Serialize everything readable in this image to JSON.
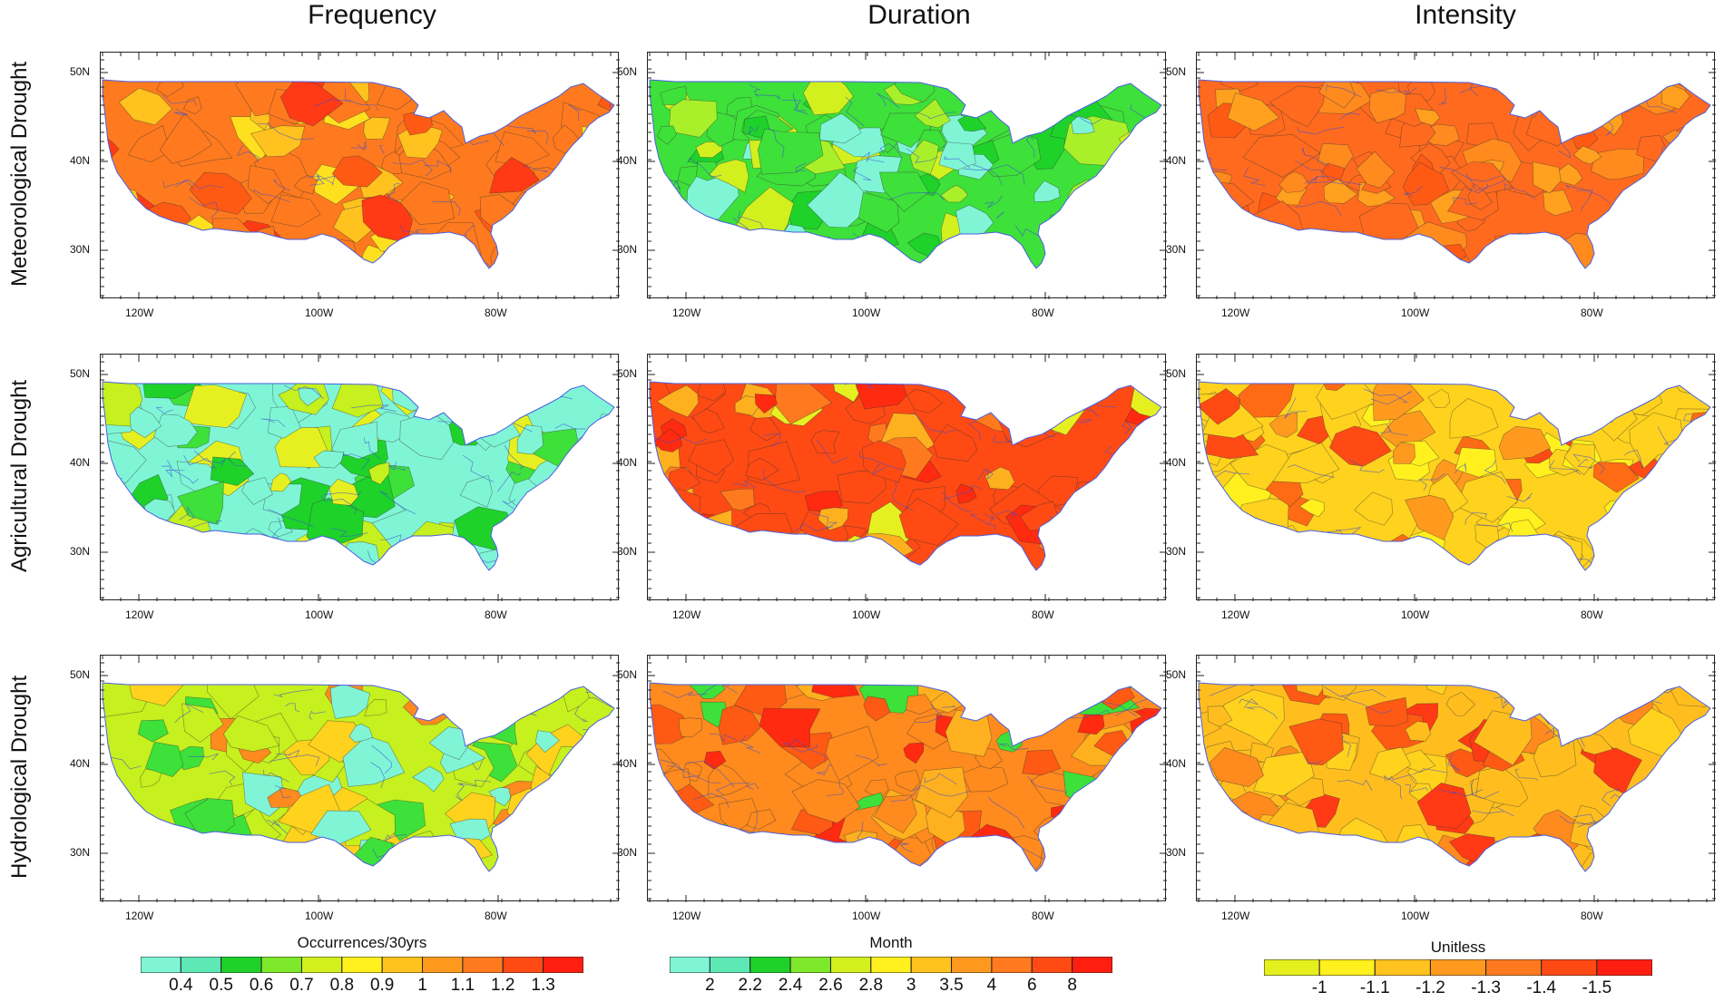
{
  "columns": [
    "Frequency",
    "Duration",
    "Intensity"
  ],
  "rows": [
    "Meteorological Drought",
    "Agricultural Drought",
    "Hydrological Drought"
  ],
  "lat_ticks": [
    "50N",
    "40N",
    "30N"
  ],
  "lon_ticks": [
    "120W",
    "100W",
    "80W"
  ],
  "panels": [
    {
      "row": 0,
      "col": 0,
      "dominant": "#ff7a1e",
      "accents": [
        "#ffc21e",
        "#ff5a14",
        "#ffe01e",
        "#ff3a14"
      ]
    },
    {
      "row": 0,
      "col": 1,
      "dominant": "#3ee03a",
      "accents": [
        "#7ff5d6",
        "#aaf02a",
        "#d2f01e",
        "#1ed22a"
      ]
    },
    {
      "row": 0,
      "col": 2,
      "dominant": "#ff6a1e",
      "accents": [
        "#ff8a1e",
        "#ff5a14",
        "#ffa01e"
      ]
    },
    {
      "row": 1,
      "col": 0,
      "dominant": "#7ff5d6",
      "accents": [
        "#3ee03a",
        "#c6f01e",
        "#e6f020",
        "#1ed22a"
      ]
    },
    {
      "row": 1,
      "col": 1,
      "dominant": "#ff4a14",
      "accents": [
        "#ff7a1e",
        "#ff2a10",
        "#ffb01e",
        "#e6f020"
      ]
    },
    {
      "row": 1,
      "col": 2,
      "dominant": "#ffd21e",
      "accents": [
        "#ff9a1e",
        "#ff6a14",
        "#fff01e",
        "#ff4a14"
      ]
    },
    {
      "row": 2,
      "col": 0,
      "dominant": "#c6f01e",
      "accents": [
        "#3ee03a",
        "#7ff5d6",
        "#ffd21e",
        "#ff8a1e"
      ]
    },
    {
      "row": 2,
      "col": 1,
      "dominant": "#ff8a1e",
      "accents": [
        "#ff5a14",
        "#ffb01e",
        "#3ee03a",
        "#ff2a10"
      ]
    },
    {
      "row": 2,
      "col": 2,
      "dominant": "#ffbe1e",
      "accents": [
        "#ffd21e",
        "#ff8a1e",
        "#ff5a14",
        "#ff3a14"
      ]
    }
  ],
  "colorbars": [
    {
      "title": "Occurrences/30yrs",
      "labels": [
        "0.4",
        "0.5",
        "0.6",
        "0.7",
        "0.8",
        "0.9",
        "1",
        "1.1",
        "1.2",
        "1.3"
      ],
      "colors": [
        "#7ff5d6",
        "#5ee8b6",
        "#1ed22a",
        "#7ee82a",
        "#d2f01e",
        "#fff01e",
        "#ffc21e",
        "#ff9a1e",
        "#ff7a1e",
        "#ff4a14",
        "#ff1e10"
      ]
    },
    {
      "title": "Month",
      "labels": [
        "2",
        "2.2",
        "2.4",
        "2.6",
        "2.8",
        "3",
        "3.5",
        "4",
        "6",
        "8"
      ],
      "colors": [
        "#7ff5d6",
        "#5ee8b6",
        "#1ed22a",
        "#7ee82a",
        "#d2f01e",
        "#fff01e",
        "#ffc21e",
        "#ff9a1e",
        "#ff7a1e",
        "#ff4a14",
        "#ff1e10"
      ]
    },
    {
      "title": "Unitless",
      "labels": [
        "-1",
        "-1.1",
        "-1.2",
        "-1.3",
        "-1.4",
        "-1.5"
      ],
      "colors": [
        "#e6f01e",
        "#fff01e",
        "#ffc21e",
        "#ff9a1e",
        "#ff7a1e",
        "#ff4a14",
        "#ff1e10"
      ]
    }
  ]
}
